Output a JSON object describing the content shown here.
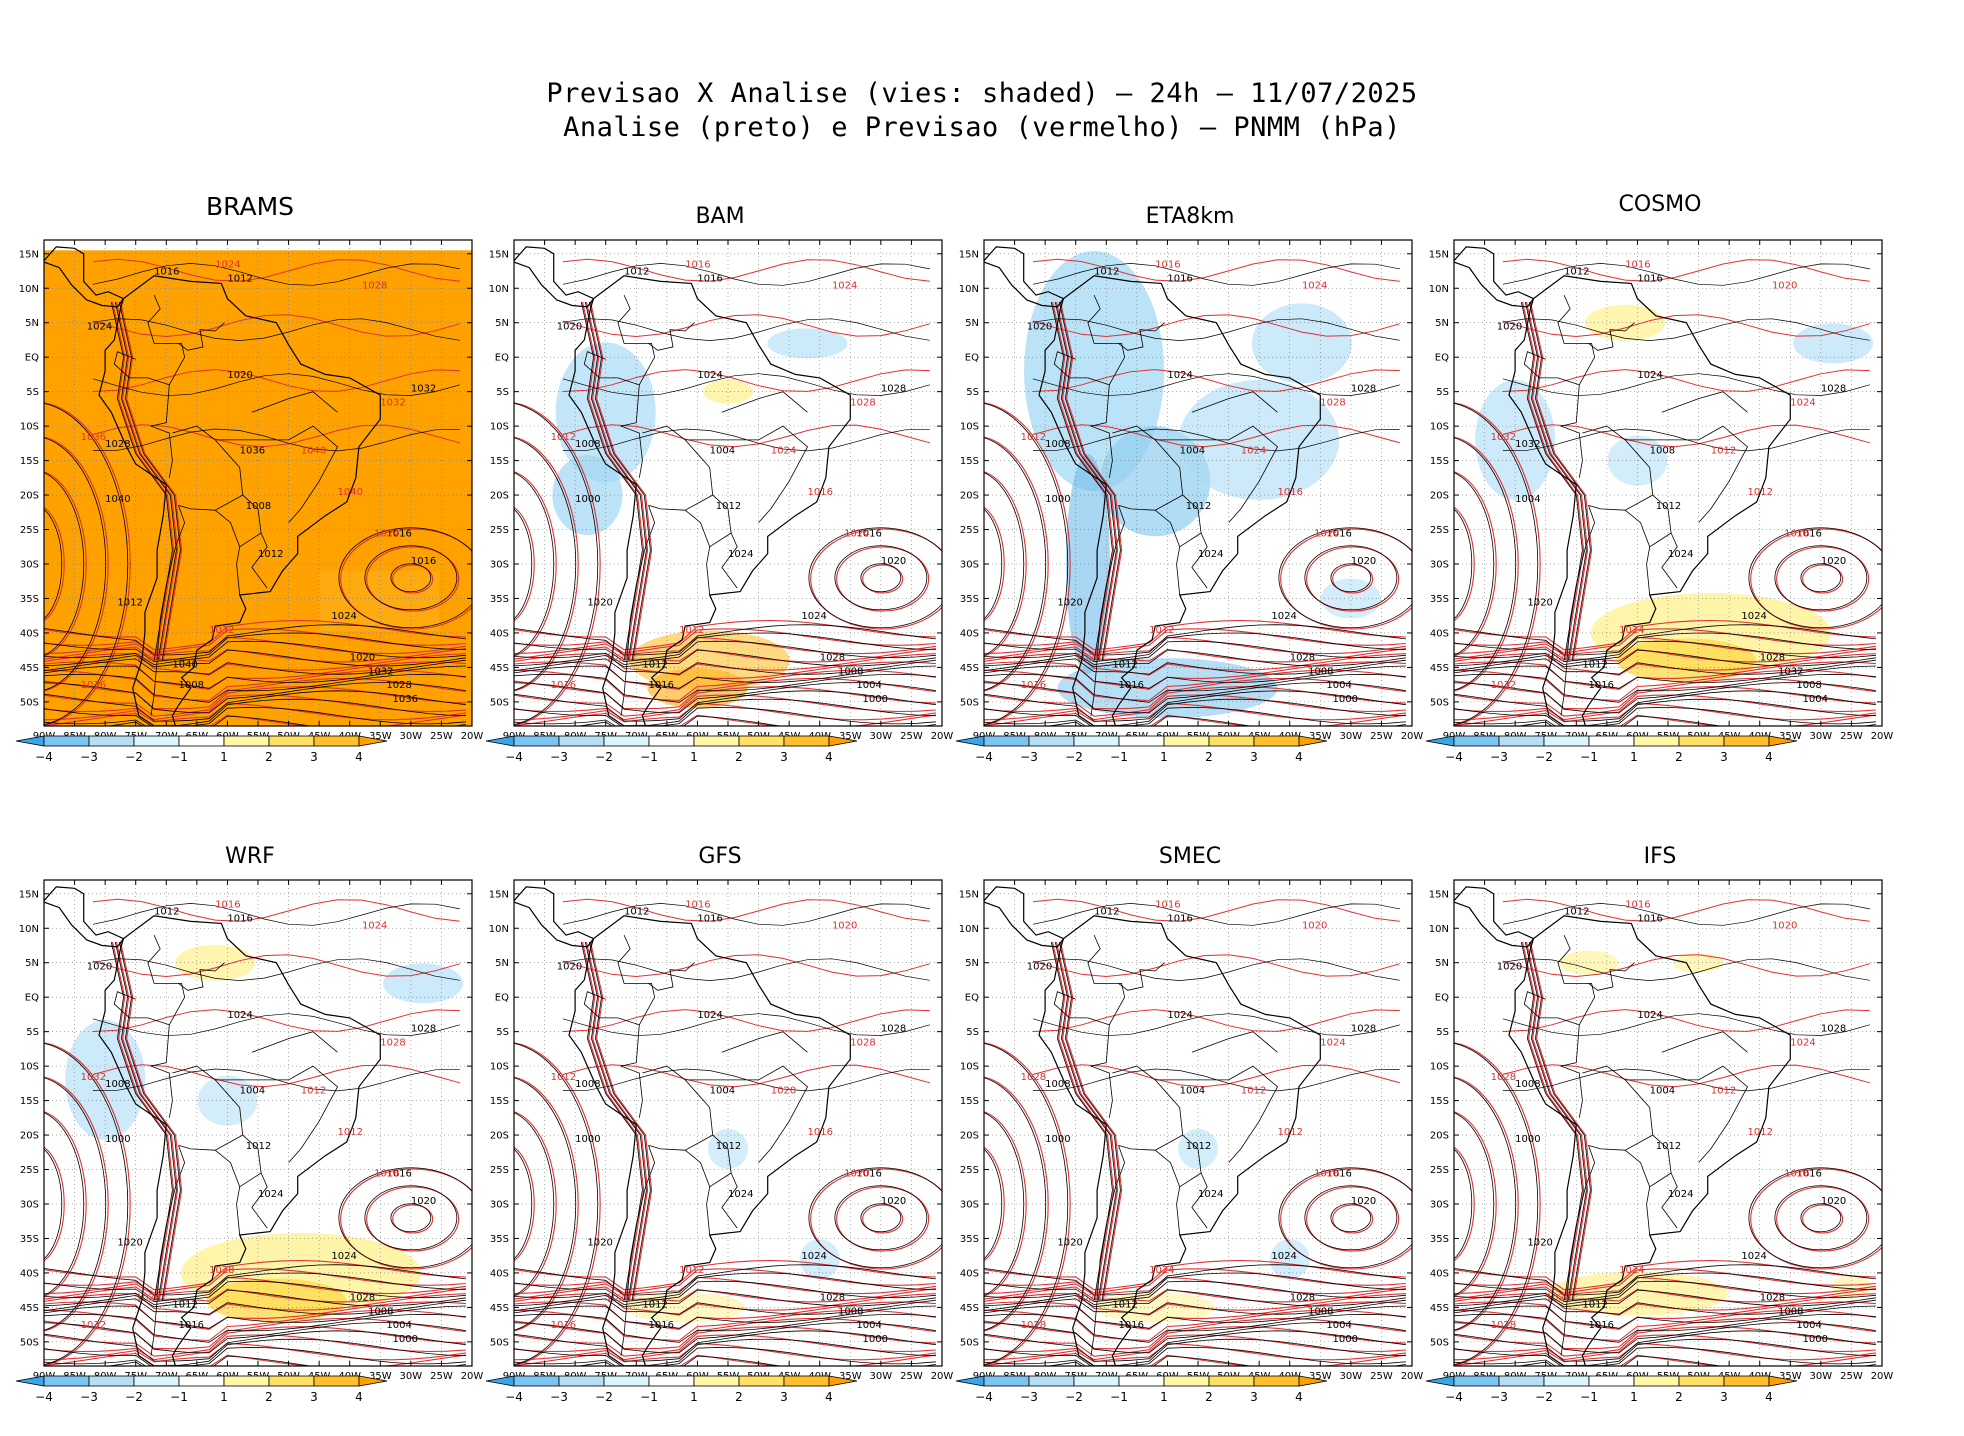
{
  "title_line1": "Previsao X Analise (vies: shaded) – 24h – 11/07/2025",
  "title_line2": "Analise (preto) e Previsao (vermelho) – PNMM (hPa)",
  "lat_ticks": [
    "15N",
    "10N",
    "5N",
    "EQ",
    "5S",
    "10S",
    "15S",
    "20S",
    "25S",
    "30S",
    "35S",
    "40S",
    "45S",
    "50S"
  ],
  "lon_ticks": [
    "90W",
    "85W",
    "80W",
    "75W",
    "70W",
    "65W",
    "60W",
    "55W",
    "50W",
    "45W",
    "40W",
    "35W",
    "30W",
    "25W",
    "20W"
  ],
  "colorbar": {
    "labels": [
      "−4",
      "−3",
      "−2",
      "−1",
      "1",
      "2",
      "3",
      "4"
    ],
    "colors": [
      "#3aa6ea",
      "#7cc4f2",
      "#b4dff7",
      "#d9f4fb",
      "#ffffff",
      "#fff6a6",
      "#ffe060",
      "#ffc02a",
      "#ffa000"
    ]
  },
  "colors": {
    "analysis": "#000000",
    "forecast": "#e03030",
    "land_bias_brams": "#ffa200",
    "cool_bias": "#aadcf5",
    "warm_bias": "#fff39a"
  },
  "panels": [
    {
      "name": "BRAMS",
      "bias": "warm-full",
      "labels": [
        "1016",
        "1012",
        "1024",
        "1020",
        "1032",
        "1028",
        "1036",
        "1040",
        "1008"
      ],
      "red_labels": [
        "1024",
        "1028",
        "1032",
        "1036",
        "1040"
      ]
    },
    {
      "name": "BAM",
      "bias": "mixed-cool",
      "labels": [
        "1012",
        "1016",
        "1020",
        "1024",
        "1028",
        "1008",
        "1004",
        "1000"
      ],
      "red_labels": [
        "1016",
        "1024",
        "1028",
        "1012"
      ]
    },
    {
      "name": "ETA8km",
      "bias": "cool",
      "labels": [
        "1012",
        "1016",
        "1020",
        "1024",
        "1028",
        "1008",
        "1004",
        "1000"
      ],
      "red_labels": [
        "1016",
        "1024",
        "1028",
        "1012"
      ]
    },
    {
      "name": "COSMO",
      "bias": "mixed-warm",
      "labels": [
        "1012",
        "1016",
        "1020",
        "1024",
        "1028",
        "1032",
        "1008",
        "1004"
      ],
      "red_labels": [
        "1016",
        "1020",
        "1024",
        "1032",
        "1012"
      ]
    },
    {
      "name": "WRF",
      "bias": "mixed-warm",
      "labels": [
        "1012",
        "1016",
        "1020",
        "1024",
        "1028",
        "1008",
        "1004",
        "1000"
      ],
      "red_labels": [
        "1016",
        "1024",
        "1028",
        "1032",
        "1012"
      ]
    },
    {
      "name": "GFS",
      "bias": "light",
      "labels": [
        "1012",
        "1016",
        "1020",
        "1024",
        "1028",
        "1008",
        "1004",
        "1000"
      ],
      "red_labels": [
        "1016",
        "1020",
        "1028",
        "1012"
      ]
    },
    {
      "name": "SMEC",
      "bias": "light",
      "labels": [
        "1012",
        "1016",
        "1020",
        "1024",
        "1028",
        "1008",
        "1004",
        "1000"
      ],
      "red_labels": [
        "1016",
        "1020",
        "1024",
        "1028",
        "1012"
      ]
    },
    {
      "name": "IFS",
      "bias": "light-warm",
      "labels": [
        "1012",
        "1016",
        "1020",
        "1024",
        "1028",
        "1008",
        "1004",
        "1000"
      ],
      "red_labels": [
        "1016",
        "1020",
        "1024",
        "1028",
        "1012"
      ]
    }
  ]
}
